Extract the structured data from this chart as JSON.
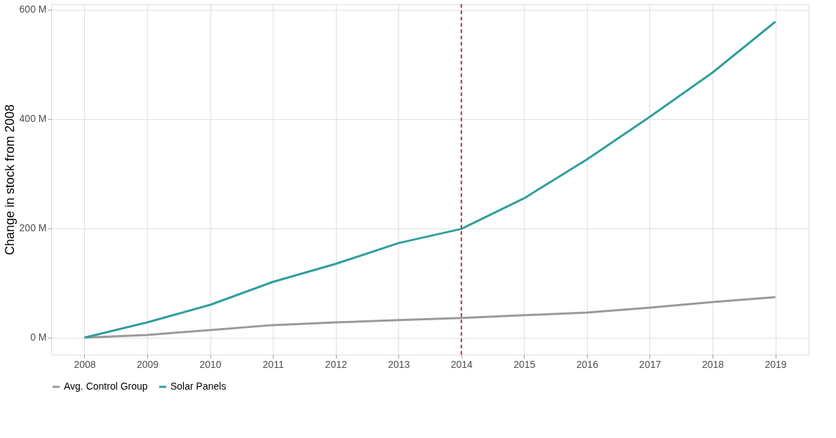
{
  "chart_data": {
    "type": "line",
    "ylabel": "Change in stock from 2008",
    "x": [
      2008,
      2009,
      2010,
      2011,
      2012,
      2013,
      2014,
      2015,
      2016,
      2017,
      2018,
      2019
    ],
    "series": [
      {
        "name": "Avg. Control Group",
        "color": "#999999",
        "values": [
          0,
          5,
          14,
          23,
          28,
          32,
          36,
          41,
          46,
          55,
          65,
          74
        ]
      },
      {
        "name": "Solar Panels",
        "color": "#2e9e9e",
        "values": [
          0,
          28,
          60,
          102,
          135,
          173,
          199,
          255,
          326,
          404,
          485,
          578
        ]
      }
    ],
    "xlim": [
      2007.47,
      2019.53
    ],
    "xticks": [
      2008,
      2009,
      2010,
      2011,
      2012,
      2013,
      2014,
      2015,
      2016,
      2017,
      2018,
      2019
    ],
    "ylim": [
      -31,
      610
    ],
    "yticks": [
      {
        "value": 0,
        "label": "0 M"
      },
      {
        "value": 200,
        "label": "200 M"
      },
      {
        "value": 400,
        "label": "400 M"
      },
      {
        "value": 600,
        "label": "600 M"
      }
    ],
    "ref_lines": [
      {
        "axis": "x",
        "value": 2014,
        "color": "#b03a3a",
        "line_style": "dashed"
      }
    ],
    "grid": true,
    "legend": "bottom",
    "marker": "none",
    "line_style": "solid"
  }
}
